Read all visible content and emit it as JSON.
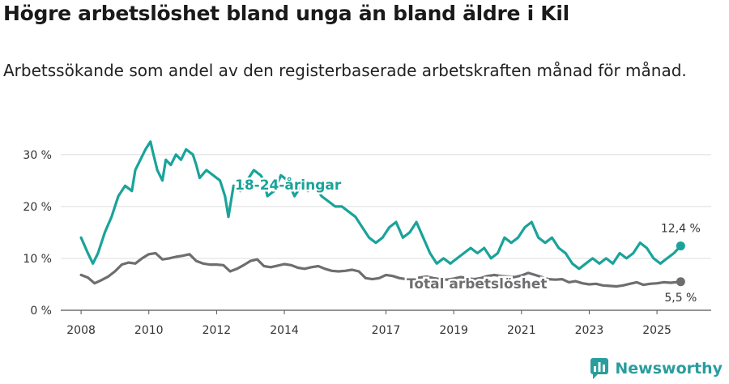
{
  "title": "Högre arbetslöshet bland unga än bland äldre i Kil",
  "subtitle": "Arbetssökande som andel av den registerbaserade arbetskraften månad för månad.",
  "brand": {
    "name": "Newsworthy",
    "icon": "newsworthy-logo-icon",
    "color": "#2a9d9d"
  },
  "chart_data": {
    "type": "line",
    "title": "Högre arbetslöshet bland unga än bland äldre i Kil",
    "xlabel": "",
    "ylabel": "",
    "xlim": [
      2007.4,
      2026.6
    ],
    "ylim": [
      0,
      32
    ],
    "grid": true,
    "y_ticks": [
      0,
      10,
      20,
      30
    ],
    "y_tick_labels": [
      "0 %",
      "10 %",
      "20 %",
      "30 %"
    ],
    "x_ticks": [
      2008,
      2010,
      2012,
      2014,
      2017,
      2019,
      2021,
      2023,
      2025
    ],
    "x_tick_labels": [
      "2008",
      "2010",
      "2012",
      "2014",
      "2017",
      "2019",
      "2021",
      "2023",
      "2025"
    ],
    "series": [
      {
        "name": "18-24-åringar",
        "color": "#1aa39a",
        "last_value_label": "12,4 %",
        "x": [
          2008.0,
          2008.2,
          2008.35,
          2008.5,
          2008.7,
          2008.9,
          2009.1,
          2009.3,
          2009.5,
          2009.6,
          2009.75,
          2009.9,
          2010.05,
          2010.1,
          2010.25,
          2010.4,
          2010.5,
          2010.65,
          2010.8,
          2010.95,
          2011.1,
          2011.3,
          2011.4,
          2011.5,
          2011.7,
          2011.9,
          2012.1,
          2012.25,
          2012.35,
          2012.5,
          2012.7,
          2012.9,
          2013.1,
          2013.3,
          2013.4,
          2013.5,
          2013.7,
          2013.9,
          2014.1,
          2014.3,
          2014.5,
          2014.7,
          2014.9,
          2015.1,
          2015.3,
          2015.5,
          2015.7,
          2015.9,
          2016.1,
          2016.3,
          2016.5,
          2016.7,
          2016.9,
          2017.1,
          2017.3,
          2017.5,
          2017.7,
          2017.9,
          2018.1,
          2018.3,
          2018.5,
          2018.7,
          2018.9,
          2019.1,
          2019.3,
          2019.5,
          2019.7,
          2019.9,
          2020.1,
          2020.3,
          2020.5,
          2020.7,
          2020.9,
          2021.1,
          2021.3,
          2021.5,
          2021.7,
          2021.9,
          2022.1,
          2022.3,
          2022.5,
          2022.7,
          2022.9,
          2023.1,
          2023.3,
          2023.5,
          2023.7,
          2023.9,
          2024.1,
          2024.3,
          2024.5,
          2024.7,
          2024.9,
          2025.1,
          2025.3,
          2025.5,
          2025.7
        ],
        "values": [
          14,
          11,
          9,
          11,
          15,
          18,
          22,
          24,
          23,
          27,
          29,
          31,
          32.5,
          31,
          27,
          25,
          29,
          28,
          30,
          29,
          31,
          30,
          28,
          25.5,
          27,
          26,
          25,
          22,
          18,
          24,
          23,
          25,
          27,
          26,
          25,
          22,
          23,
          26,
          25,
          22,
          24,
          23,
          24,
          22,
          21,
          20,
          20,
          19,
          18,
          16,
          14,
          13,
          14,
          16,
          17,
          14,
          15,
          17,
          14,
          11,
          9,
          10,
          9,
          10,
          11,
          12,
          11,
          12,
          10,
          11,
          14,
          13,
          14,
          16,
          17,
          14,
          13,
          14,
          12,
          11,
          9,
          8,
          9,
          10,
          9,
          10,
          9,
          11,
          10,
          11,
          13,
          12,
          10,
          9,
          10,
          11,
          12.4
        ]
      },
      {
        "name": "Total arbetslöshet",
        "color": "#6e6e70",
        "last_value_label": "5,5 %",
        "x": [
          2008.0,
          2008.2,
          2008.4,
          2008.6,
          2008.8,
          2009.0,
          2009.2,
          2009.4,
          2009.6,
          2009.8,
          2010.0,
          2010.2,
          2010.4,
          2010.6,
          2010.8,
          2011.0,
          2011.2,
          2011.4,
          2011.6,
          2011.8,
          2012.0,
          2012.2,
          2012.4,
          2012.6,
          2012.8,
          2013.0,
          2013.2,
          2013.4,
          2013.6,
          2013.8,
          2014.0,
          2014.2,
          2014.4,
          2014.6,
          2014.8,
          2015.0,
          2015.2,
          2015.4,
          2015.6,
          2015.8,
          2016.0,
          2016.2,
          2016.4,
          2016.6,
          2016.8,
          2017.0,
          2017.2,
          2017.4,
          2017.6,
          2017.8,
          2018.0,
          2018.2,
          2018.4,
          2018.6,
          2018.8,
          2019.0,
          2019.2,
          2019.4,
          2019.6,
          2019.8,
          2020.0,
          2020.2,
          2020.4,
          2020.6,
          2020.8,
          2021.0,
          2021.2,
          2021.4,
          2021.6,
          2021.8,
          2022.0,
          2022.2,
          2022.4,
          2022.6,
          2022.8,
          2023.0,
          2023.2,
          2023.4,
          2023.6,
          2023.8,
          2024.0,
          2024.2,
          2024.4,
          2024.6,
          2024.8,
          2025.0,
          2025.2,
          2025.4,
          2025.7
        ],
        "values": [
          6.8,
          6.3,
          5.2,
          5.8,
          6.5,
          7.5,
          8.8,
          9.2,
          9.0,
          10.0,
          10.8,
          11.0,
          9.8,
          10.0,
          10.3,
          10.5,
          10.8,
          9.5,
          9.0,
          8.8,
          8.8,
          8.7,
          7.5,
          8.0,
          8.7,
          9.5,
          9.8,
          8.5,
          8.3,
          8.6,
          8.9,
          8.7,
          8.2,
          8.0,
          8.3,
          8.5,
          8.0,
          7.6,
          7.5,
          7.6,
          7.8,
          7.5,
          6.2,
          6.0,
          6.2,
          6.8,
          6.6,
          6.2,
          6.0,
          6.0,
          6.3,
          6.5,
          6.2,
          6.0,
          5.9,
          6.1,
          6.4,
          6.2,
          6.0,
          6.2,
          6.6,
          6.8,
          6.6,
          6.5,
          6.4,
          6.7,
          7.2,
          6.8,
          6.4,
          6.0,
          5.9,
          6.0,
          5.4,
          5.6,
          5.2,
          5.0,
          5.1,
          4.8,
          4.7,
          4.6,
          4.8,
          5.1,
          5.4,
          4.9,
          5.1,
          5.2,
          5.4,
          5.3,
          5.5
        ]
      }
    ]
  }
}
